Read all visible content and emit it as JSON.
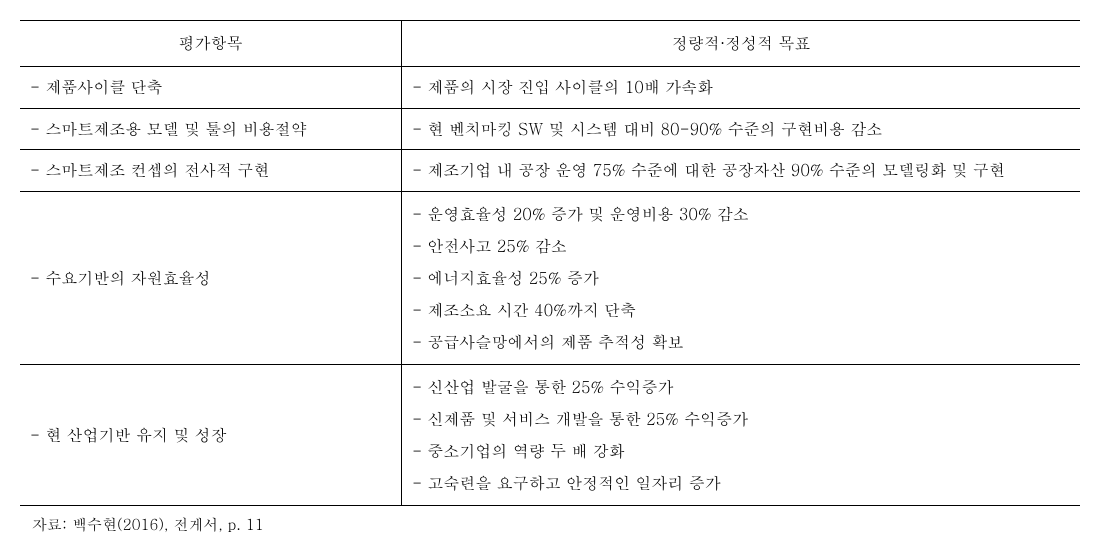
{
  "table": {
    "headers": {
      "col1": "평가항목",
      "col2": "정량적·정성적 목표"
    },
    "rows": [
      {
        "item": "- 제품사이클 단축",
        "target": "- 제품의 시장 진입 사이클의 10배 가속화"
      },
      {
        "item": "- 스마트제조용 모델 및 툴의 비용절약",
        "target": "- 현 벤치마킹 SW 및 시스템 대비 80-90% 수준의 구현비용 감소"
      },
      {
        "item": "- 스마트제조 컨셉의 전사적 구현",
        "target": "- 제조기업 내 공장 운영 75% 수준에 대한 공장자산 90% 수준의 모델링화 및 구현"
      },
      {
        "item": "- 수요기반의 자원효율성",
        "target": "- 운영효율성 20% 증가 및 운영비용 30% 감소\n- 안전사고 25% 감소\n- 에너지효율성 25% 증가\n- 제조소요 시간 40%까지 단축\n- 공급사슬망에서의 제품 추적성 확보"
      },
      {
        "item": "- 현 산업기반 유지 및 성장",
        "target": "- 신산업 발굴을 통한 25% 수익증가\n- 신제품 및 서비스 개발을 통한 25% 수익증가\n- 중소기업의 역량 두 배 강화\n- 고숙련을 요구하고 안정적인 일자리 증가"
      }
    ]
  },
  "source": "자료: 백수현(2016), 전게서, p. 11"
}
